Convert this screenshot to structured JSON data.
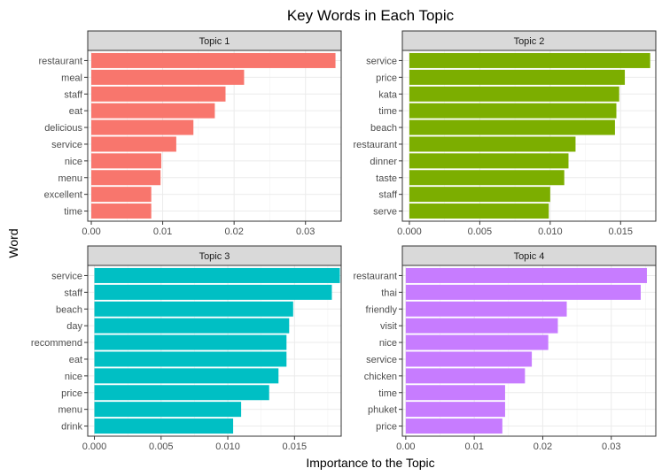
{
  "chart_data": {
    "type": "bar",
    "orientation": "horizontal",
    "title": "Key Words in Each Topic",
    "xlabel": "Importance to the Topic",
    "ylabel": "Word",
    "grid": true,
    "facets": [
      {
        "name": "Topic 1",
        "color": "#F8766D",
        "xlim": [
          -0.0005,
          0.035
        ],
        "ticks": [
          0,
          0.01,
          0.02,
          0.03
        ],
        "tick_labels": [
          "0.00",
          "0.01",
          "0.02",
          "0.03"
        ],
        "categories": [
          "restaurant",
          "meal",
          "staff",
          "eat",
          "delicious",
          "service",
          "nice",
          "menu",
          "excellent",
          "time"
        ],
        "values": [
          0.0342,
          0.0214,
          0.0188,
          0.0173,
          0.0143,
          0.0119,
          0.0098,
          0.0097,
          0.0084,
          0.0084
        ]
      },
      {
        "name": "Topic 2",
        "color": "#7CAE00",
        "xlim": [
          -0.0005,
          0.0175
        ],
        "ticks": [
          0,
          0.005,
          0.01,
          0.015
        ],
        "tick_labels": [
          "0.000",
          "0.005",
          "0.010",
          "0.015"
        ],
        "categories": [
          "service",
          "price",
          "kata",
          "time",
          "beach",
          "restaurant",
          "dinner",
          "taste",
          "staff",
          "serve"
        ],
        "values": [
          0.0171,
          0.0153,
          0.0149,
          0.0147,
          0.0146,
          0.0118,
          0.0113,
          0.011,
          0.01,
          0.0099
        ]
      },
      {
        "name": "Topic 3",
        "color": "#00BFC4",
        "xlim": [
          -0.0005,
          0.0185
        ],
        "ticks": [
          0,
          0.005,
          0.01,
          0.015
        ],
        "tick_labels": [
          "0.000",
          "0.005",
          "0.010",
          "0.015"
        ],
        "categories": [
          "service",
          "staff",
          "beach",
          "day",
          "recommend",
          "eat",
          "nice",
          "price",
          "menu",
          "drink"
        ],
        "values": [
          0.0184,
          0.0178,
          0.0149,
          0.0146,
          0.0144,
          0.0144,
          0.0138,
          0.0131,
          0.011,
          0.0104
        ]
      },
      {
        "name": "Topic 4",
        "color": "#C77CFF",
        "xlim": [
          -0.0005,
          0.0365
        ],
        "ticks": [
          0,
          0.01,
          0.02,
          0.03
        ],
        "tick_labels": [
          "0.00",
          "0.01",
          "0.02",
          "0.03"
        ],
        "categories": [
          "restaurant",
          "thai",
          "friendly",
          "visit",
          "nice",
          "service",
          "chicken",
          "time",
          "phuket",
          "price"
        ],
        "values": [
          0.0352,
          0.0343,
          0.0235,
          0.0222,
          0.0208,
          0.0184,
          0.0174,
          0.0145,
          0.0145,
          0.0141
        ]
      }
    ]
  }
}
